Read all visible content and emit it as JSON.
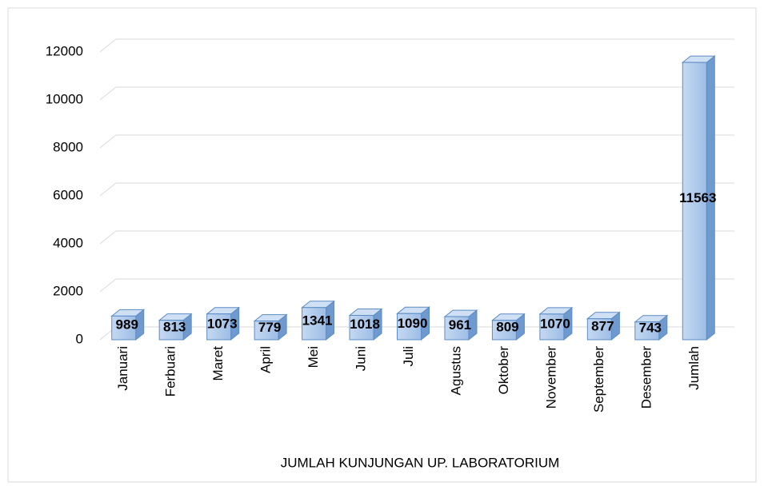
{
  "chart_data": {
    "type": "bar3d",
    "x_label": "JUMLAH KUNJUNGAN UP. LABORATORIUM",
    "categories": [
      "Januari",
      "Ferbuari",
      "Maret",
      "April",
      "Mei",
      "Juni",
      "Juli",
      "Agustus",
      "Oktober",
      "November",
      "September",
      "Desember",
      "Jumlah"
    ],
    "values": [
      989,
      813,
      1073,
      779,
      1341,
      1018,
      1090,
      961,
      809,
      1070,
      877,
      743,
      11563
    ],
    "color": "#a9c6ea",
    "ylim": [
      0,
      12000
    ],
    "yticks": [
      0,
      2000,
      4000,
      6000,
      8000,
      10000,
      12000
    ],
    "grid": true
  }
}
